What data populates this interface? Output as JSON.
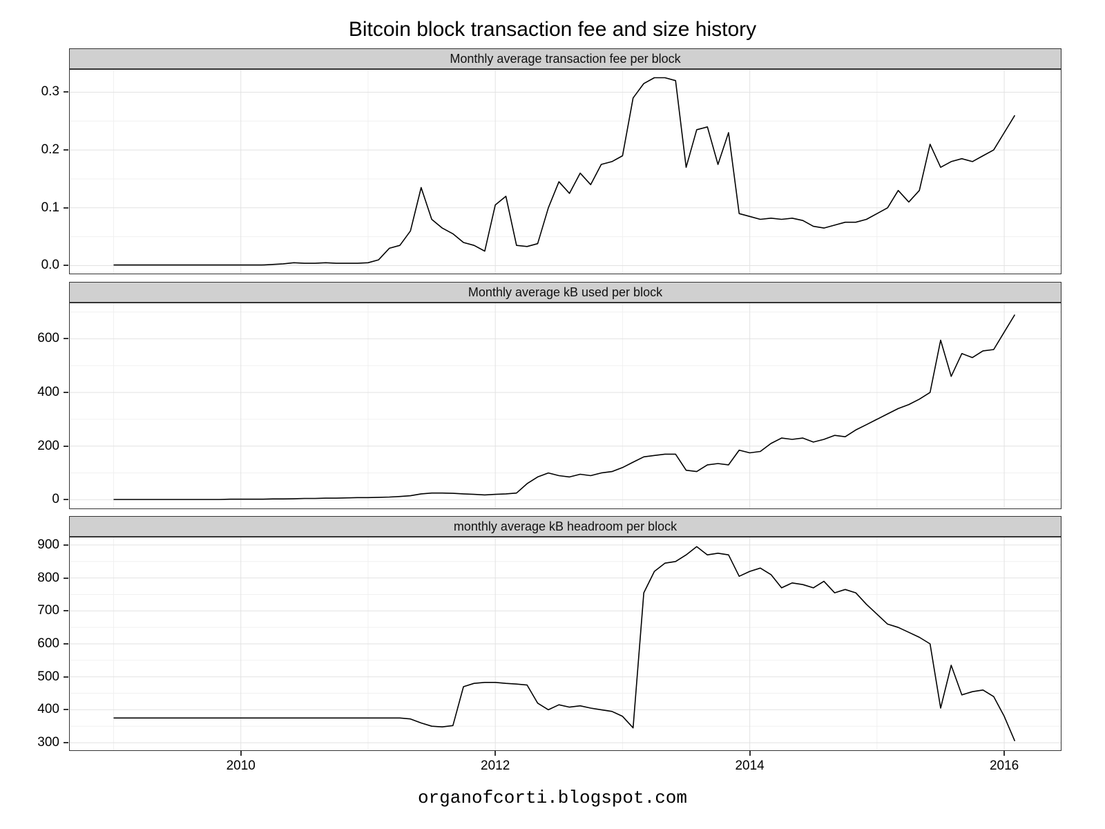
{
  "chart_data": {
    "type": "line",
    "title": "Bitcoin block transaction fee and size history",
    "footer": "organofcorti.blogspot.com",
    "xlim": [
      2008.65,
      2016.45
    ],
    "xticks": {
      "values": [
        2010,
        2012,
        2014,
        2016
      ],
      "labels": [
        "2010",
        "2012",
        "2014",
        "2016"
      ]
    },
    "x": [
      2009.0,
      2009.083,
      2009.167,
      2009.25,
      2009.333,
      2009.417,
      2009.5,
      2009.583,
      2009.667,
      2009.75,
      2009.833,
      2009.917,
      2010.0,
      2010.083,
      2010.167,
      2010.25,
      2010.333,
      2010.417,
      2010.5,
      2010.583,
      2010.667,
      2010.75,
      2010.833,
      2010.917,
      2011.0,
      2011.083,
      2011.167,
      2011.25,
      2011.333,
      2011.417,
      2011.5,
      2011.583,
      2011.667,
      2011.75,
      2011.833,
      2011.917,
      2012.0,
      2012.083,
      2012.167,
      2012.25,
      2012.333,
      2012.417,
      2012.5,
      2012.583,
      2012.667,
      2012.75,
      2012.833,
      2012.917,
      2013.0,
      2013.083,
      2013.167,
      2013.25,
      2013.333,
      2013.417,
      2013.5,
      2013.583,
      2013.667,
      2013.75,
      2013.833,
      2013.917,
      2014.0,
      2014.083,
      2014.167,
      2014.25,
      2014.333,
      2014.417,
      2014.5,
      2014.583,
      2014.667,
      2014.75,
      2014.833,
      2014.917,
      2015.0,
      2015.083,
      2015.167,
      2015.25,
      2015.333,
      2015.417,
      2015.5,
      2015.583,
      2015.667,
      2015.75,
      2015.833,
      2015.917,
      2016.0,
      2016.083
    ],
    "panels": [
      {
        "title": "Monthly average transaction fee per block",
        "ylim": [
          -0.015,
          0.34
        ],
        "yticks": [
          0.0,
          0.1,
          0.2,
          0.3
        ],
        "ytick_labels": [
          "0.0",
          "0.1",
          "0.2",
          "0.3"
        ],
        "values": [
          0.001,
          0.001,
          0.001,
          0.001,
          0.001,
          0.001,
          0.001,
          0.001,
          0.001,
          0.001,
          0.001,
          0.001,
          0.001,
          0.001,
          0.001,
          0.002,
          0.003,
          0.005,
          0.004,
          0.004,
          0.005,
          0.004,
          0.004,
          0.004,
          0.005,
          0.01,
          0.03,
          0.035,
          0.06,
          0.135,
          0.08,
          0.065,
          0.055,
          0.04,
          0.035,
          0.025,
          0.105,
          0.12,
          0.035,
          0.033,
          0.038,
          0.1,
          0.145,
          0.125,
          0.16,
          0.14,
          0.175,
          0.18,
          0.19,
          0.29,
          0.315,
          0.325,
          0.325,
          0.32,
          0.17,
          0.235,
          0.24,
          0.175,
          0.23,
          0.09,
          0.085,
          0.08,
          0.082,
          0.08,
          0.082,
          0.078,
          0.068,
          0.065,
          0.07,
          0.075,
          0.075,
          0.08,
          0.09,
          0.1,
          0.13,
          0.11,
          0.13,
          0.21,
          0.17,
          0.18,
          0.185,
          0.18,
          0.19,
          0.2,
          0.23,
          0.26
        ]
      },
      {
        "title": "Monthly average kB used per block",
        "ylim": [
          -35,
          735
        ],
        "yticks": [
          0,
          200,
          400,
          600
        ],
        "ytick_labels": [
          "0",
          "200",
          "400",
          "600"
        ],
        "values": [
          1,
          1,
          1,
          1,
          1,
          1,
          1,
          1,
          1,
          1,
          1,
          2,
          2,
          2,
          2,
          3,
          3,
          4,
          5,
          5,
          6,
          6,
          7,
          8,
          8,
          9,
          10,
          12,
          15,
          22,
          25,
          25,
          24,
          22,
          20,
          18,
          20,
          22,
          25,
          60,
          85,
          100,
          90,
          85,
          95,
          90,
          100,
          105,
          120,
          140,
          160,
          165,
          170,
          170,
          110,
          105,
          130,
          135,
          130,
          185,
          175,
          180,
          210,
          230,
          225,
          230,
          215,
          225,
          240,
          235,
          260,
          280,
          300,
          320,
          340,
          355,
          375,
          400,
          595,
          460,
          545,
          530,
          555,
          560,
          625,
          690
        ]
      },
      {
        "title": "monthly average kB headroom per block",
        "ylim": [
          275,
          925
        ],
        "yticks": [
          300,
          400,
          500,
          600,
          700,
          800,
          900
        ],
        "ytick_labels": [
          "300",
          "400",
          "500",
          "600",
          "700",
          "800",
          "900"
        ],
        "values": [
          375,
          375,
          375,
          375,
          375,
          375,
          375,
          375,
          375,
          375,
          375,
          375,
          375,
          375,
          375,
          375,
          375,
          375,
          375,
          375,
          375,
          375,
          375,
          375,
          375,
          375,
          375,
          375,
          372,
          360,
          350,
          348,
          352,
          470,
          480,
          483,
          483,
          480,
          478,
          475,
          420,
          400,
          415,
          408,
          412,
          405,
          400,
          395,
          380,
          345,
          755,
          820,
          845,
          850,
          870,
          895,
          870,
          875,
          870,
          805,
          820,
          830,
          810,
          770,
          785,
          780,
          770,
          790,
          755,
          765,
          755,
          720,
          690,
          660,
          650,
          635,
          620,
          600,
          405,
          535,
          445,
          455,
          460,
          440,
          380,
          305
        ]
      }
    ],
    "style": {
      "line_color": "#000000",
      "strip_fill": "#d0d0d0",
      "panel_border": "#333333",
      "grid_major": "#e2e2e2",
      "grid_minor": "#f0f0f0"
    }
  }
}
